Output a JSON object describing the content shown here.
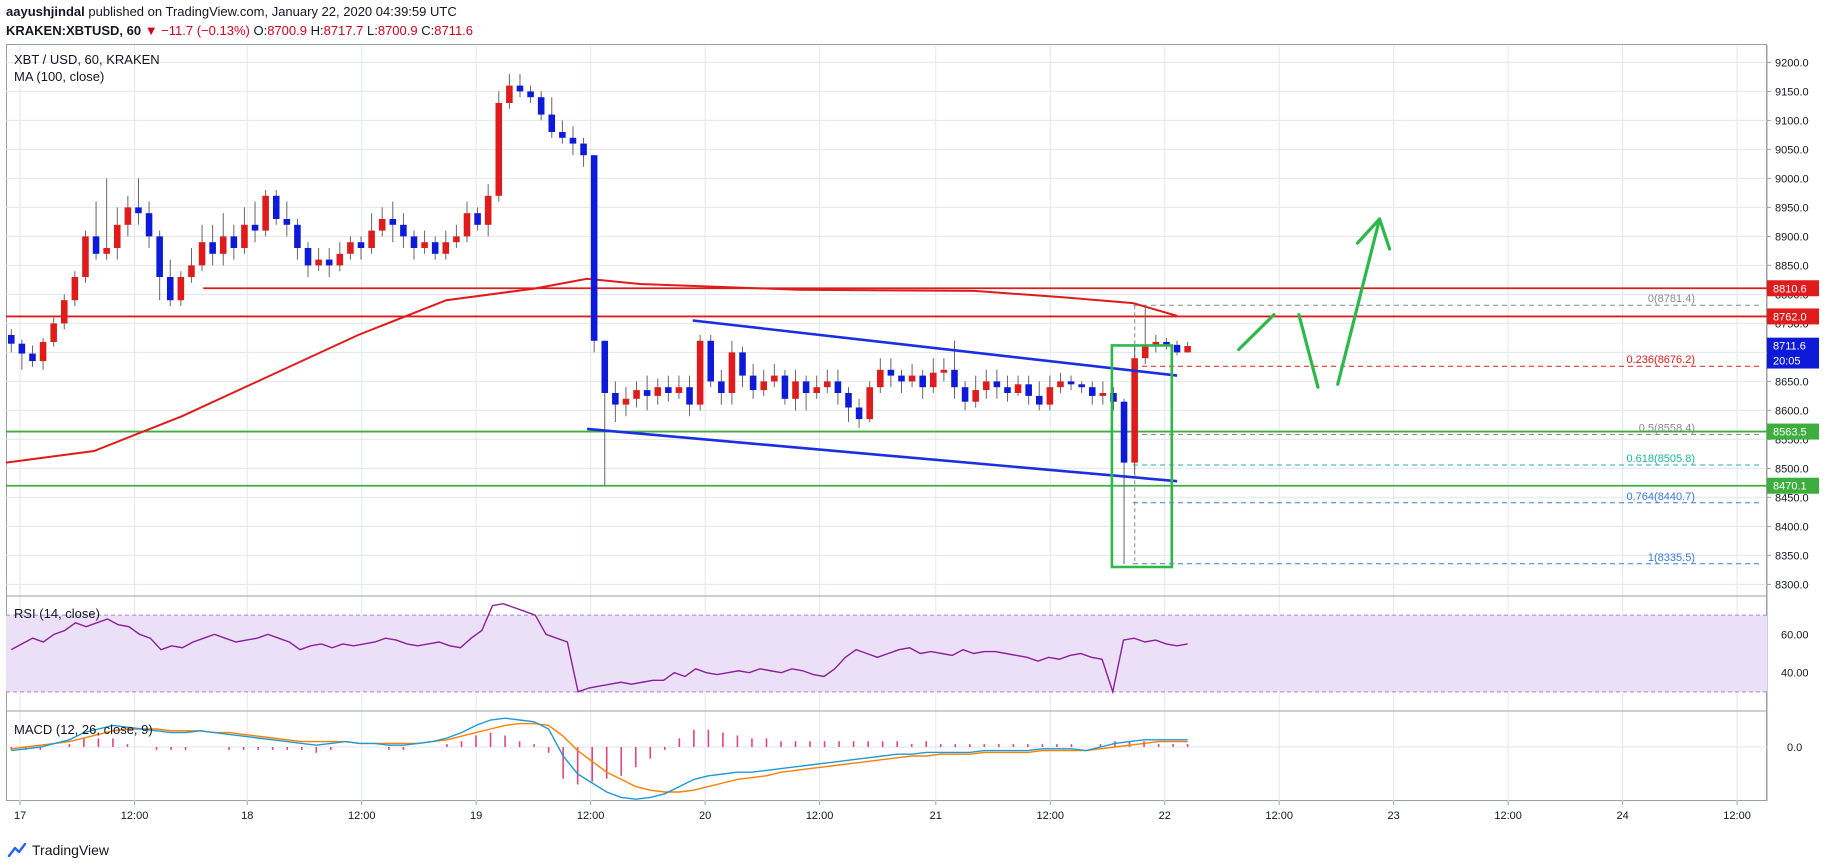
{
  "header": {
    "author": "aayushjindal",
    "published": "published on TradingView.com, January 22, 2020 04:39:59 UTC",
    "symbol_line": "KRAKEN:XBTUSD, 60",
    "change": "▼ −11.7 (−0.13%)",
    "ohlc_o_label": "O:",
    "ohlc_o": "8700.9",
    "ohlc_h_label": "H:",
    "ohlc_h": "8717.7",
    "ohlc_l_label": "L:",
    "ohlc_l": "8700.9",
    "ohlc_c_label": "C:",
    "ohlc_c": "8711.6"
  },
  "main_pane": {
    "title": "XBT / USD, 60, KRAKEN",
    "indicator": "MA (100, close)"
  },
  "rsi_pane": {
    "title": "RSI (14, close)"
  },
  "macd_pane": {
    "title": "MACD (12, 26, close, 9)"
  },
  "footer": {
    "brand": "TradingView"
  },
  "colors": {
    "up": "#0d1bd8",
    "down": "#e01b1b",
    "ma": "#e01b1b",
    "resistance": "#e01b1b",
    "support": "#3dae3d",
    "channel": "#1a2fe0",
    "arrow": "#2cb84a",
    "rsi": "#8a1f9a",
    "rsi_band": "#ece0f8",
    "macd": "#1e9ad6",
    "signal": "#ff7f00",
    "hist": "#e0467a"
  },
  "chart_data": {
    "type": "candlestick",
    "symbol": "XBT / USD",
    "interval": "60",
    "x_ticks": [
      "17",
      "12:00",
      "18",
      "12:00",
      "19",
      "12:00",
      "20",
      "12:00",
      "21",
      "12:00",
      "22",
      "12:00",
      "23",
      "12:00",
      "24",
      "12:00"
    ],
    "y_ticks": [
      "9200.0",
      "9150.0",
      "9100.0",
      "9050.0",
      "9000.0",
      "8950.0",
      "8900.0",
      "8850.0",
      "8800.0",
      "8750.0",
      "8700.0",
      "8650.0",
      "8600.0",
      "8550.0",
      "8500.0",
      "8450.0",
      "8400.0",
      "8350.0",
      "8300.0"
    ],
    "ylim": [
      8280,
      9230
    ],
    "price_labels": [
      {
        "text": "8810.6",
        "value": 8810.6,
        "color": "#e01b1b"
      },
      {
        "text": "8762.0",
        "value": 8762.0,
        "color": "#e01b1b"
      },
      {
        "text": "8711.6",
        "value": 8711.6,
        "color": "#0d1bd8"
      },
      {
        "text": "20:05",
        "value": 8686,
        "color": "#0d1bd8"
      },
      {
        "text": "8563.5",
        "value": 8563.5,
        "color": "#3dae3d"
      },
      {
        "text": "8470.1",
        "value": 8470.1,
        "color": "#3dae3d"
      }
    ],
    "horizontal_lines": [
      {
        "value": 8810.6,
        "kind": "resistance",
        "x_start": 0.112
      },
      {
        "value": 8762.0,
        "kind": "resistance",
        "x_start": 0.0
      },
      {
        "value": 8563.5,
        "kind": "support",
        "x_start": 0.0
      },
      {
        "value": 8470.1,
        "kind": "support",
        "x_start": 0.0
      }
    ],
    "fib_levels": [
      {
        "text": "0(8781.4)",
        "value": 8781.4,
        "color": "#8a8a8a"
      },
      {
        "text": "0.236(8676.2)",
        "value": 8676.2,
        "color": "#e01b1b"
      },
      {
        "text": "0.5(8558.4)",
        "value": 8558.4,
        "color": "#8a8a8a"
      },
      {
        "text": "0.618(8505.8)",
        "value": 8505.8,
        "color": "#1fb59a"
      },
      {
        "text": "0.764(8440.7)",
        "value": 8440.7,
        "color": "#3a7ad8"
      },
      {
        "text": "1(8335.5)",
        "value": 8335.5,
        "color": "#3a7ad8"
      }
    ],
    "candles": [
      [
        8715,
        8730,
        8700,
        8740
      ],
      [
        8698,
        8715,
        8670,
        8722
      ],
      [
        8685,
        8698,
        8675,
        8712
      ],
      [
        8718,
        8685,
        8670,
        8725
      ],
      [
        8750,
        8718,
        8710,
        8760
      ],
      [
        8790,
        8750,
        8740,
        8800
      ],
      [
        8830,
        8790,
        8780,
        8840
      ],
      [
        8900,
        8830,
        8820,
        8910
      ],
      [
        8870,
        8900,
        8860,
        8960
      ],
      [
        8880,
        8870,
        8860,
        9000
      ],
      [
        8920,
        8880,
        8860,
        8950
      ],
      [
        8950,
        8920,
        8900,
        8970
      ],
      [
        8940,
        8950,
        8920,
        9000
      ],
      [
        8900,
        8940,
        8880,
        8960
      ],
      [
        8830,
        8900,
        8790,
        8910
      ],
      [
        8790,
        8830,
        8780,
        8860
      ],
      [
        8830,
        8790,
        8780,
        8840
      ],
      [
        8850,
        8830,
        8820,
        8880
      ],
      [
        8890,
        8850,
        8840,
        8920
      ],
      [
        8870,
        8890,
        8850,
        8920
      ],
      [
        8900,
        8870,
        8850,
        8940
      ],
      [
        8880,
        8900,
        8860,
        8920
      ],
      [
        8920,
        8880,
        8870,
        8950
      ],
      [
        8910,
        8920,
        8890,
        8960
      ],
      [
        8970,
        8910,
        8900,
        8980
      ],
      [
        8930,
        8970,
        8920,
        8980
      ],
      [
        8920,
        8930,
        8900,
        8960
      ],
      [
        8880,
        8920,
        8860,
        8930
      ],
      [
        8850,
        8880,
        8830,
        8890
      ],
      [
        8860,
        8850,
        8840,
        8880
      ],
      [
        8850,
        8860,
        8830,
        8880
      ],
      [
        8870,
        8850,
        8840,
        8890
      ],
      [
        8890,
        8870,
        8860,
        8900
      ],
      [
        8880,
        8890,
        8860,
        8900
      ],
      [
        8910,
        8880,
        8870,
        8940
      ],
      [
        8930,
        8910,
        8900,
        8950
      ],
      [
        8920,
        8930,
        8890,
        8960
      ],
      [
        8900,
        8920,
        8880,
        8940
      ],
      [
        8880,
        8900,
        8860,
        8910
      ],
      [
        8890,
        8880,
        8870,
        8910
      ],
      [
        8870,
        8890,
        8860,
        8900
      ],
      [
        8890,
        8870,
        8860,
        8910
      ],
      [
        8900,
        8890,
        8880,
        8920
      ],
      [
        8940,
        8900,
        8890,
        8960
      ],
      [
        8920,
        8940,
        8910,
        8950
      ],
      [
        8970,
        8920,
        8900,
        8990
      ],
      [
        9130,
        8970,
        8960,
        9150
      ],
      [
        9160,
        9130,
        9120,
        9180
      ],
      [
        9150,
        9160,
        9140,
        9180
      ],
      [
        9140,
        9150,
        9130,
        9160
      ],
      [
        9110,
        9140,
        9100,
        9150
      ],
      [
        9080,
        9110,
        9070,
        9140
      ],
      [
        9070,
        9080,
        9060,
        9100
      ],
      [
        9060,
        9070,
        9040,
        9090
      ],
      [
        9040,
        9060,
        9020,
        9070
      ],
      [
        8720,
        9040,
        8700,
        9040
      ],
      [
        8630,
        8720,
        8470,
        8720
      ],
      [
        8610,
        8630,
        8580,
        8650
      ],
      [
        8620,
        8610,
        8590,
        8640
      ],
      [
        8635,
        8620,
        8605,
        8650
      ],
      [
        8625,
        8635,
        8600,
        8660
      ],
      [
        8640,
        8625,
        8610,
        8655
      ],
      [
        8630,
        8640,
        8615,
        8660
      ],
      [
        8640,
        8630,
        8620,
        8660
      ],
      [
        8610,
        8640,
        8590,
        8660
      ],
      [
        8720,
        8610,
        8600,
        8730
      ],
      [
        8650,
        8720,
        8640,
        8730
      ],
      [
        8630,
        8650,
        8610,
        8670
      ],
      [
        8700,
        8630,
        8610,
        8720
      ],
      [
        8660,
        8700,
        8640,
        8710
      ],
      [
        8635,
        8660,
        8620,
        8680
      ],
      [
        8650,
        8635,
        8625,
        8670
      ],
      [
        8660,
        8650,
        8640,
        8680
      ],
      [
        8620,
        8660,
        8610,
        8670
      ],
      [
        8650,
        8620,
        8600,
        8670
      ],
      [
        8630,
        8650,
        8600,
        8660
      ],
      [
        8640,
        8630,
        8620,
        8660
      ],
      [
        8650,
        8640,
        8630,
        8670
      ],
      [
        8630,
        8650,
        8610,
        8670
      ],
      [
        8605,
        8630,
        8580,
        8640
      ],
      [
        8585,
        8605,
        8570,
        8620
      ],
      [
        8640,
        8585,
        8580,
        8650
      ],
      [
        8670,
        8640,
        8630,
        8690
      ],
      [
        8660,
        8670,
        8640,
        8690
      ],
      [
        8650,
        8660,
        8630,
        8670
      ],
      [
        8660,
        8650,
        8640,
        8680
      ],
      [
        8640,
        8660,
        8620,
        8670
      ],
      [
        8665,
        8640,
        8630,
        8690
      ],
      [
        8670,
        8665,
        8650,
        8690
      ],
      [
        8640,
        8670,
        8620,
        8720
      ],
      [
        8615,
        8640,
        8600,
        8650
      ],
      [
        8635,
        8615,
        8605,
        8660
      ],
      [
        8650,
        8635,
        8620,
        8670
      ],
      [
        8640,
        8650,
        8620,
        8670
      ],
      [
        8630,
        8640,
        8615,
        8660
      ],
      [
        8645,
        8630,
        8625,
        8660
      ],
      [
        8625,
        8645,
        8610,
        8660
      ],
      [
        8610,
        8625,
        8600,
        8650
      ],
      [
        8640,
        8610,
        8600,
        8660
      ],
      [
        8650,
        8640,
        8630,
        8665
      ],
      [
        8645,
        8650,
        8635,
        8660
      ],
      [
        8640,
        8645,
        8630,
        8650
      ],
      [
        8625,
        8640,
        8610,
        8650
      ],
      [
        8630,
        8625,
        8610,
        8650
      ],
      [
        8615,
        8630,
        8600,
        8640
      ],
      [
        8510,
        8615,
        8335,
        8620
      ],
      [
        8690,
        8510,
        8490,
        8710
      ],
      [
        8710,
        8690,
        8680,
        8781
      ],
      [
        8718,
        8710,
        8700,
        8730
      ],
      [
        8713,
        8718,
        8705,
        8725
      ],
      [
        8700,
        8713,
        8695,
        8720
      ],
      [
        8711,
        8700,
        8700,
        8718
      ]
    ],
    "ma100": [
      [
        0,
        8510
      ],
      [
        0.05,
        8530
      ],
      [
        0.1,
        8590
      ],
      [
        0.15,
        8660
      ],
      [
        0.2,
        8730
      ],
      [
        0.25,
        8790
      ],
      [
        0.3,
        8810
      ],
      [
        0.33,
        8827
      ],
      [
        0.36,
        8818
      ],
      [
        0.45,
        8808
      ],
      [
        0.55,
        8806
      ],
      [
        0.6,
        8795
      ],
      [
        0.64,
        8785
      ],
      [
        0.665,
        8763
      ]
    ],
    "rsi": {
      "ylim": [
        20,
        80
      ],
      "bands": [
        70,
        30
      ],
      "ticks": [
        "60.00",
        "40.00"
      ],
      "tick_values": [
        60,
        40
      ],
      "values": [
        52,
        55,
        58,
        56,
        60,
        62,
        66,
        64,
        66,
        68,
        65,
        64,
        60,
        58,
        52,
        54,
        53,
        56,
        58,
        60,
        58,
        56,
        57,
        58,
        60,
        58,
        56,
        52,
        54,
        55,
        53,
        55,
        54,
        55,
        56,
        58,
        57,
        55,
        54,
        55,
        56,
        54,
        53,
        58,
        62,
        75,
        76,
        74,
        72,
        70,
        60,
        58,
        56,
        30,
        32,
        33,
        34,
        35,
        34,
        35,
        36,
        36,
        40,
        38,
        42,
        40,
        39,
        40,
        41,
        40,
        42,
        41,
        40,
        42,
        41,
        39,
        38,
        42,
        48,
        52,
        50,
        48,
        50,
        52,
        53,
        50,
        51,
        50,
        49,
        52,
        50,
        51,
        51,
        50,
        49,
        48,
        46,
        48,
        47,
        49,
        50,
        48,
        47,
        30,
        57,
        58,
        56,
        57,
        55,
        54,
        55
      ]
    },
    "macd": {
      "ylim": [
        -30,
        20
      ],
      "ticks": [
        "0.0"
      ],
      "tick_values": [
        0
      ],
      "macd": [
        -2,
        -1,
        0,
        2,
        4,
        8,
        10,
        12,
        11,
        10,
        9,
        8,
        8,
        9,
        8,
        7,
        6,
        5,
        4,
        3,
        2,
        1,
        2,
        3,
        2,
        2,
        1,
        1,
        2,
        3,
        5,
        8,
        12,
        15,
        16,
        15,
        14,
        10,
        -5,
        -15,
        -20,
        -25,
        -28,
        -29,
        -28,
        -26,
        -22,
        -18,
        -16,
        -15,
        -14,
        -14,
        -13,
        -12,
        -11,
        -10,
        -9,
        -8,
        -7,
        -6,
        -5,
        -4,
        -4,
        -3,
        -3,
        -3,
        -3,
        -2,
        -2,
        -2,
        -2,
        -1,
        -1,
        -1,
        -2,
        0,
        2,
        3,
        4,
        4,
        4,
        4
      ],
      "signal": [
        -1,
        0,
        1,
        2,
        3,
        5,
        7,
        9,
        10,
        10,
        10,
        9,
        9,
        9,
        8,
        8,
        7,
        6,
        5,
        4,
        3,
        3,
        3,
        3,
        2,
        2,
        2,
        2,
        2,
        3,
        4,
        6,
        8,
        10,
        12,
        13,
        13,
        12,
        6,
        -2,
        -8,
        -14,
        -18,
        -22,
        -24,
        -25,
        -25,
        -24,
        -22,
        -20,
        -18,
        -17,
        -16,
        -14,
        -13,
        -12,
        -11,
        -10,
        -9,
        -8,
        -7,
        -6,
        -5,
        -5,
        -4,
        -4,
        -4,
        -3,
        -3,
        -3,
        -3,
        -2,
        -2,
        -2,
        -2,
        -1,
        0,
        1,
        2,
        3,
        3,
        3
      ]
    },
    "arrow_path": [
      [
        0.7,
        8705
      ],
      [
        0.72,
        8765
      ],
      [
        0.745,
        8640
      ],
      [
        0.75,
        8645
      ],
      [
        0.78,
        8930
      ]
    ],
    "channel": {
      "upper": [
        [
          0.39,
          8755
        ],
        [
          0.665,
          8660
        ]
      ],
      "lower": [
        [
          0.33,
          8568
        ],
        [
          0.665,
          8478
        ]
      ]
    },
    "box": {
      "x0": 0.628,
      "x1": 0.662,
      "y_top": 8712,
      "y_bottom": 8330
    }
  }
}
